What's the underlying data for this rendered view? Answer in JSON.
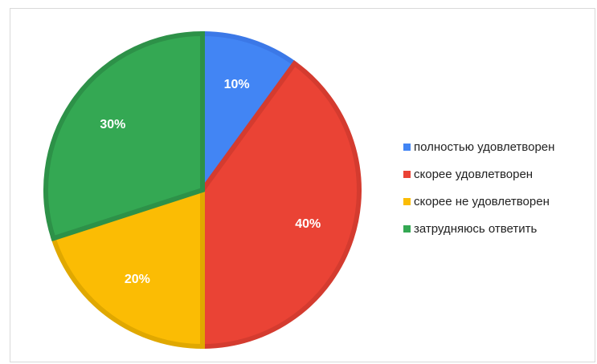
{
  "chart_data": {
    "type": "pie",
    "title": "",
    "start_angle_deg": 0,
    "direction": "clockwise",
    "legend_position": "right",
    "slices": [
      {
        "label": "полностью удовлетворен",
        "value": 10,
        "display": "10%",
        "color": "#4285f4",
        "edge": "#3b78e7"
      },
      {
        "label": "скорее удовлетворен",
        "value": 40,
        "display": "40%",
        "color": "#ea4335",
        "edge": "#d43b2f"
      },
      {
        "label": "скорее не удовлетворен",
        "value": 20,
        "display": "20%",
        "color": "#fbbc04",
        "edge": "#e0a800"
      },
      {
        "label": "затрудняюсь ответить",
        "value": 30,
        "display": "30%",
        "color": "#34a853",
        "edge": "#2d9148"
      }
    ]
  }
}
